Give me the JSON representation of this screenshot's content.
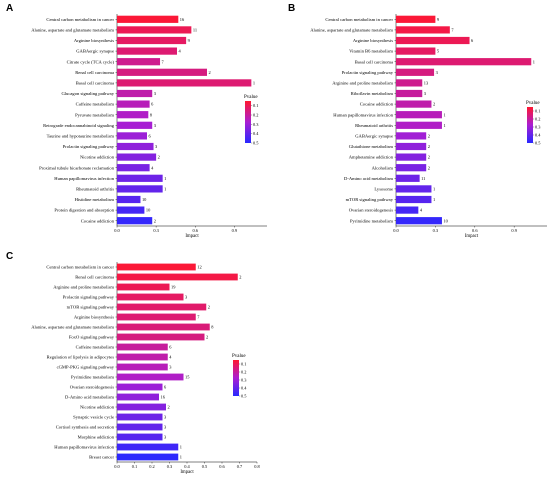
{
  "chart_data": [
    {
      "panel": "A",
      "type": "bar",
      "orientation": "horizontal",
      "xlabel": "Impact",
      "xticks": [
        "0.0",
        "0.3",
        "0.6",
        "0.9"
      ],
      "xlim": [
        0,
        1.15
      ],
      "legend": {
        "title": "Pvalue",
        "ticks": [
          "0.1",
          "0.2",
          "0.3",
          "0.4",
          "0.5"
        ],
        "range": [
          0.05,
          0.5
        ],
        "placement": "right"
      },
      "bars": [
        {
          "term": "Central carbon metabolism in cancer",
          "impact": 0.47,
          "count": "16",
          "pvalue": 0.06
        },
        {
          "term": "Alanine, aspartate and glutamate metabolism",
          "impact": 0.57,
          "count": "11",
          "pvalue": 0.1
        },
        {
          "term": "Arginine biosynthesis",
          "impact": 0.53,
          "count": "9",
          "pvalue": 0.12
        },
        {
          "term": "GABAergic synapse",
          "impact": 0.46,
          "count": "4",
          "pvalue": 0.14
        },
        {
          "term": "Citrate cycle (TCA cycle)",
          "impact": 0.33,
          "count": "7",
          "pvalue": 0.18
        },
        {
          "term": "Renal cell carcinoma",
          "impact": 0.69,
          "count": "2",
          "pvalue": 0.16
        },
        {
          "term": "Basal cell carcinoma",
          "impact": 1.03,
          "count": "1",
          "pvalue": 0.14
        },
        {
          "term": "Glucagon signaling pathway",
          "impact": 0.27,
          "count": "3",
          "pvalue": 0.22
        },
        {
          "term": "Caffeine metabolism",
          "impact": 0.25,
          "count": "6",
          "pvalue": 0.24
        },
        {
          "term": "Pyruvate metabolism",
          "impact": 0.24,
          "count": "8",
          "pvalue": 0.26
        },
        {
          "term": "Retrograde endocannabinoid signaling",
          "impact": 0.27,
          "count": "3",
          "pvalue": 0.28
        },
        {
          "term": "Taurine and hypotaurine metabolism",
          "impact": 0.23,
          "count": "6",
          "pvalue": 0.3
        },
        {
          "term": "Prolactin signaling pathway",
          "impact": 0.28,
          "count": "3",
          "pvalue": 0.32
        },
        {
          "term": "Nicotine addiction",
          "impact": 0.3,
          "count": "2",
          "pvalue": 0.34
        },
        {
          "term": "Proximal tubule bicarbonate reclamation",
          "impact": 0.25,
          "count": "4",
          "pvalue": 0.36
        },
        {
          "term": "Human papillomavirus infection",
          "impact": 0.35,
          "count": "1",
          "pvalue": 0.38
        },
        {
          "term": "Rheumatoid arthritis",
          "impact": 0.35,
          "count": "1",
          "pvalue": 0.4
        },
        {
          "term": "Histidine metabolism",
          "impact": 0.18,
          "count": "10",
          "pvalue": 0.42
        },
        {
          "term": "Protein digestion and absorption",
          "impact": 0.21,
          "count": "10",
          "pvalue": 0.45
        },
        {
          "term": "Cocaine addiction",
          "impact": 0.27,
          "count": "2",
          "pvalue": 0.48
        }
      ]
    },
    {
      "panel": "B",
      "type": "bar",
      "orientation": "horizontal",
      "xlabel": "Impact",
      "xticks": [
        "0.0",
        "0.3",
        "0.6",
        "0.9"
      ],
      "xlim": [
        0,
        1.15
      ],
      "legend": {
        "title": "Pvalue",
        "ticks": [
          "0.1",
          "0.2",
          "0.3",
          "0.4",
          "0.5"
        ],
        "range": [
          0.05,
          0.5
        ],
        "placement": "right"
      },
      "bars": [
        {
          "term": "Central carbon metabolism in cancer",
          "impact": 0.3,
          "count": "9",
          "pvalue": 0.06
        },
        {
          "term": "Alanine, aspartate and glutamate metabolism",
          "impact": 0.41,
          "count": "7",
          "pvalue": 0.08
        },
        {
          "term": "Arginine biosynthesis",
          "impact": 0.56,
          "count": "6",
          "pvalue": 0.1
        },
        {
          "term": "Vitamin B6 metabolism",
          "impact": 0.3,
          "count": "5",
          "pvalue": 0.12
        },
        {
          "term": "Basal cell carcinoma",
          "impact": 1.03,
          "count": "1",
          "pvalue": 0.14
        },
        {
          "term": "Prolactin signaling pathway",
          "impact": 0.29,
          "count": "3",
          "pvalue": 0.16
        },
        {
          "term": "Arginine and proline metabolism",
          "impact": 0.2,
          "count": "13",
          "pvalue": 0.18
        },
        {
          "term": "Riboflavin metabolism",
          "impact": 0.2,
          "count": "3",
          "pvalue": 0.2
        },
        {
          "term": "Cocaine addiction",
          "impact": 0.27,
          "count": "2",
          "pvalue": 0.22
        },
        {
          "term": "Human papillomavirus infection",
          "impact": 0.35,
          "count": "1",
          "pvalue": 0.24
        },
        {
          "term": "Rheumatoid arthritis",
          "impact": 0.35,
          "count": "1",
          "pvalue": 0.26
        },
        {
          "term": "GABAergic synapse",
          "impact": 0.23,
          "count": "2",
          "pvalue": 0.29
        },
        {
          "term": "Glutathione metabolism",
          "impact": 0.23,
          "count": "2",
          "pvalue": 0.32
        },
        {
          "term": "Amphetamine addiction",
          "impact": 0.23,
          "count": "2",
          "pvalue": 0.34
        },
        {
          "term": "Alcoholism",
          "impact": 0.23,
          "count": "2",
          "pvalue": 0.36
        },
        {
          "term": "D-Amino acid metabolism",
          "impact": 0.18,
          "count": "11",
          "pvalue": 0.38
        },
        {
          "term": "Lysosome",
          "impact": 0.27,
          "count": "1",
          "pvalue": 0.4
        },
        {
          "term": "mTOR signaling pathway",
          "impact": 0.27,
          "count": "1",
          "pvalue": 0.42
        },
        {
          "term": "Ovarian steroidogenesis",
          "impact": 0.17,
          "count": "4",
          "pvalue": 0.45
        },
        {
          "term": "Pyrimidine metabolism",
          "impact": 0.35,
          "count": "10",
          "pvalue": 0.48
        }
      ]
    },
    {
      "panel": "C",
      "type": "bar",
      "orientation": "horizontal",
      "xlabel": "Impact",
      "xticks": [
        "0.0",
        "0.1",
        "0.2",
        "0.3",
        "0.4",
        "0.5",
        "0.6",
        "0.7",
        "0.8"
      ],
      "xlim": [
        0,
        0.8
      ],
      "legend": {
        "title": "Pvalue",
        "ticks": [
          "0.1",
          "0.2",
          "0.3",
          "0.4",
          "0.5"
        ],
        "range": [
          0.05,
          0.5
        ],
        "placement": "right"
      },
      "bars": [
        {
          "term": "Central carbon metabolism in cancer",
          "impact": 0.45,
          "count": "12",
          "pvalue": 0.06
        },
        {
          "term": "Renal cell carcinoma",
          "impact": 0.69,
          "count": "2",
          "pvalue": 0.08
        },
        {
          "term": "Arginine and proline metabolism",
          "impact": 0.3,
          "count": "19",
          "pvalue": 0.1
        },
        {
          "term": "Prolactin signaling pathway",
          "impact": 0.38,
          "count": "3",
          "pvalue": 0.12
        },
        {
          "term": "mTOR signaling pathway",
          "impact": 0.51,
          "count": "2",
          "pvalue": 0.13
        },
        {
          "term": "Arginine biosynthesis",
          "impact": 0.45,
          "count": "7",
          "pvalue": 0.14
        },
        {
          "term": "Alanine, aspartate and glutamate metabolism",
          "impact": 0.53,
          "count": "8",
          "pvalue": 0.15
        },
        {
          "term": "FoxO signaling pathway",
          "impact": 0.5,
          "count": "2",
          "pvalue": 0.16
        },
        {
          "term": "Caffeine metabolism",
          "impact": 0.29,
          "count": "6",
          "pvalue": 0.2
        },
        {
          "term": "Regulation of lipolysis in adipocytes",
          "impact": 0.29,
          "count": "4",
          "pvalue": 0.22
        },
        {
          "term": "cGMP-PKG signaling pathway",
          "impact": 0.29,
          "count": "3",
          "pvalue": 0.24
        },
        {
          "term": "Pyrimidine metabolism",
          "impact": 0.38,
          "count": "15",
          "pvalue": 0.26
        },
        {
          "term": "Ovarian steroidogenesis",
          "impact": 0.26,
          "count": "6",
          "pvalue": 0.3
        },
        {
          "term": "D-Amino acid metabolism",
          "impact": 0.24,
          "count": "16",
          "pvalue": 0.32
        },
        {
          "term": "Nicotine addiction",
          "impact": 0.28,
          "count": "2",
          "pvalue": 0.34
        },
        {
          "term": "Synaptic vesicle cycle",
          "impact": 0.26,
          "count": "3",
          "pvalue": 0.38
        },
        {
          "term": "Cortisol synthesis and secretion",
          "impact": 0.26,
          "count": "3",
          "pvalue": 0.4
        },
        {
          "term": "Morphine addiction",
          "impact": 0.26,
          "count": "3",
          "pvalue": 0.42
        },
        {
          "term": "Human papillomavirus infection",
          "impact": 0.35,
          "count": "1",
          "pvalue": 0.46
        },
        {
          "term": "Breast cancer",
          "impact": 0.35,
          "count": "1",
          "pvalue": 0.49
        }
      ]
    }
  ]
}
